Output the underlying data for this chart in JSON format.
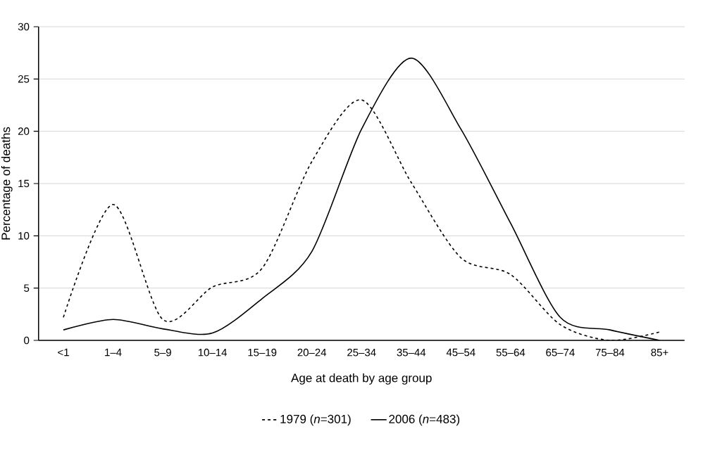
{
  "chart_data": {
    "type": "line",
    "xlabel": "Age at death by age group",
    "ylabel": "Percentage of deaths",
    "categories": [
      "<1",
      "1–4",
      "5–9",
      "10–14",
      "15–19",
      "20–24",
      "25–34",
      "35–44",
      "45–54",
      "55–64",
      "65–74",
      "75–84",
      "85+"
    ],
    "series": [
      {
        "name": "1979 (*n*=301)",
        "color": "#000000",
        "line_style": "dashed",
        "values": [
          2.2,
          13,
          2,
          5.1,
          6.9,
          17.1,
          23,
          15.1,
          7.9,
          6.3,
          1.5,
          0,
          0.8
        ]
      },
      {
        "name": "2006 (*n*=483)",
        "color": "#000000",
        "line_style": "solid",
        "values": [
          1,
          2,
          1.1,
          0.7,
          4,
          8.5,
          20.2,
          27,
          20.2,
          11.2,
          2.2,
          1,
          0
        ]
      }
    ],
    "ylim": [
      0,
      30
    ],
    "yticks": [
      0,
      5,
      10,
      15,
      20,
      25,
      30
    ],
    "grid": "y",
    "legend": "bottom",
    "marker": "none"
  }
}
